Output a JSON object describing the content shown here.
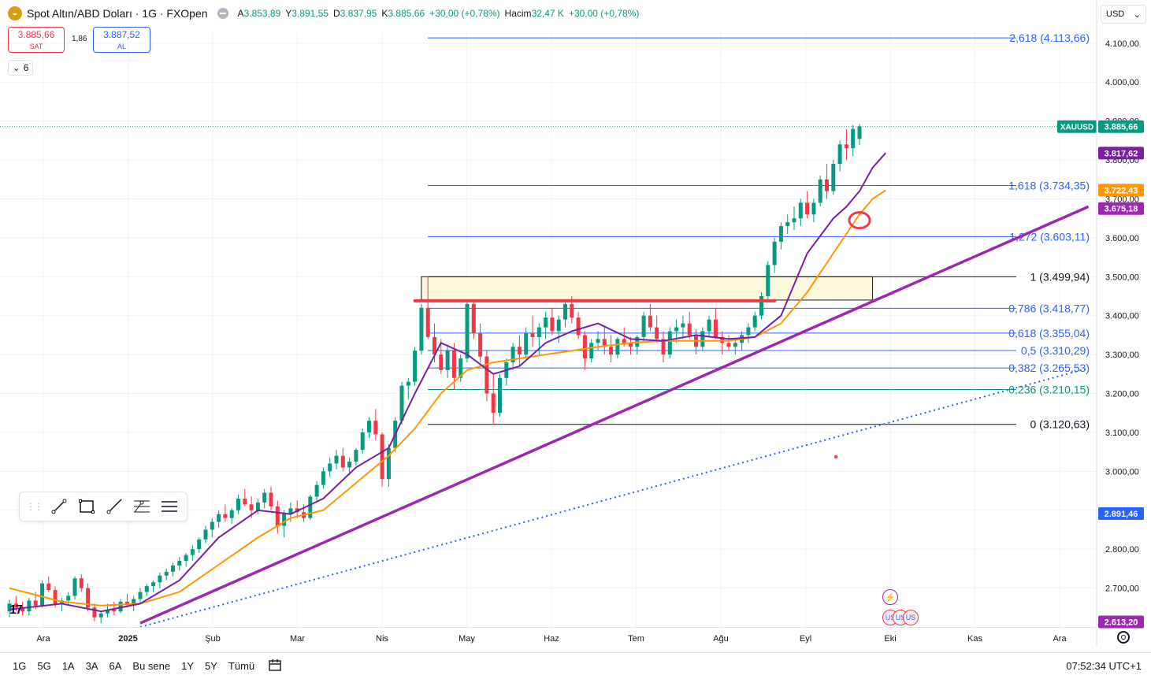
{
  "header": {
    "logo_glyph": "◒",
    "symbol_title": "Spot Altın/ABD Doları · 1G · FXOpen",
    "ohlc": [
      {
        "k": "A",
        "v": "3.853,89"
      },
      {
        "k": "Y",
        "v": "3.891,55"
      },
      {
        "k": "D",
        "v": "3.837,95"
      },
      {
        "k": "K",
        "v": "3.885,66"
      },
      {
        "k": "",
        "v": "+30,00 (+0,78%)"
      },
      {
        "k": "Hacim",
        "v": "32,47 K"
      },
      {
        "k": "",
        "v": "+30,00 (+0,78%)"
      }
    ]
  },
  "trade": {
    "sell_price": "3.885,66",
    "sell_label": "SAT",
    "spread": "1,86",
    "buy_price": "3.887,52",
    "buy_label": "AL"
  },
  "indicator_toggle": {
    "icon": "chevron-down-icon",
    "glyph": "⌄",
    "count": "6"
  },
  "currency_select": {
    "value": "USD",
    "glyph": "⌄"
  },
  "drawing_toolbar": {
    "grip_glyph": "⋮⋮",
    "tools": [
      "trend-line-icon",
      "rectangle-icon",
      "ray-icon",
      "fib-retracement-icon",
      "parallel-channel-icon"
    ]
  },
  "bottom_bar": {
    "ranges": [
      "1G",
      "5G",
      "1A",
      "3A",
      "6A",
      "Bu sene",
      "1Y",
      "5Y",
      "Tümü"
    ],
    "calendar_icon": "calendar-icon",
    "clock": "07:52:34 UTC+1"
  },
  "branding": {
    "tv_logo": "17"
  },
  "events": {
    "flash_glyph": "⚡",
    "flag_glyph": "US"
  },
  "colors": {
    "up": "#089981",
    "down": "#f23645",
    "fib": "#2962ff",
    "ma_fast": "#7b1fa2",
    "ma_slow": "#ff9800",
    "trend": "#9c27b0"
  },
  "chart_data": {
    "type": "candlestick",
    "ylim": [
      2600,
      4130
    ],
    "y_ticks": [
      "2.700,00",
      "2.800,00",
      "2.900,00",
      "3.000,00",
      "3.100,00",
      "3.200,00",
      "3.300,00",
      "3.400,00",
      "3.500,00",
      "3.600,00",
      "3.700,00",
      "3.800,00",
      "3.900,00",
      "4.000,00",
      "4.100,00"
    ],
    "x_labels": [
      "Ara",
      "2025",
      "Şub",
      "Mar",
      "Nis",
      "May",
      "Haz",
      "Tem",
      "Ağu",
      "Eyl",
      "Eki",
      "Kas",
      "Ara"
    ],
    "candles": [
      [
        2640,
        2670,
        2625,
        2660
      ],
      [
        2660,
        2680,
        2640,
        2650
      ],
      [
        2650,
        2665,
        2630,
        2640
      ],
      [
        2640,
        2675,
        2630,
        2668
      ],
      [
        2668,
        2690,
        2645,
        2655
      ],
      [
        2655,
        2720,
        2650,
        2712
      ],
      [
        2712,
        2730,
        2690,
        2695
      ],
      [
        2695,
        2705,
        2650,
        2660
      ],
      [
        2660,
        2675,
        2640,
        2668
      ],
      [
        2668,
        2690,
        2655,
        2680
      ],
      [
        2680,
        2730,
        2670,
        2725
      ],
      [
        2725,
        2735,
        2690,
        2700
      ],
      [
        2700,
        2712,
        2640,
        2650
      ],
      [
        2650,
        2660,
        2615,
        2625
      ],
      [
        2625,
        2640,
        2610,
        2635
      ],
      [
        2635,
        2660,
        2625,
        2645
      ],
      [
        2645,
        2665,
        2630,
        2640
      ],
      [
        2640,
        2672,
        2635,
        2665
      ],
      [
        2665,
        2685,
        2650,
        2660
      ],
      [
        2660,
        2680,
        2640,
        2672
      ],
      [
        2672,
        2700,
        2660,
        2690
      ],
      [
        2690,
        2710,
        2680,
        2705
      ],
      [
        2705,
        2720,
        2690,
        2715
      ],
      [
        2715,
        2740,
        2700,
        2732
      ],
      [
        2732,
        2750,
        2720,
        2742
      ],
      [
        2742,
        2765,
        2730,
        2758
      ],
      [
        2758,
        2780,
        2745,
        2770
      ],
      [
        2770,
        2790,
        2755,
        2785
      ],
      [
        2785,
        2810,
        2770,
        2800
      ],
      [
        2800,
        2830,
        2790,
        2825
      ],
      [
        2825,
        2860,
        2815,
        2850
      ],
      [
        2850,
        2880,
        2830,
        2870
      ],
      [
        2870,
        2900,
        2855,
        2890
      ],
      [
        2890,
        2915,
        2870,
        2880
      ],
      [
        2880,
        2905,
        2865,
        2900
      ],
      [
        2900,
        2940,
        2890,
        2930
      ],
      [
        2930,
        2955,
        2910,
        2915
      ],
      [
        2915,
        2935,
        2880,
        2900
      ],
      [
        2900,
        2930,
        2890,
        2920
      ],
      [
        2920,
        2955,
        2905,
        2945
      ],
      [
        2945,
        2960,
        2900,
        2910
      ],
      [
        2910,
        2925,
        2840,
        2860
      ],
      [
        2860,
        2900,
        2830,
        2890
      ],
      [
        2890,
        2920,
        2870,
        2905
      ],
      [
        2905,
        2925,
        2880,
        2895
      ],
      [
        2895,
        2915,
        2870,
        2880
      ],
      [
        2880,
        2940,
        2875,
        2935
      ],
      [
        2935,
        2975,
        2925,
        2965
      ],
      [
        2965,
        3010,
        2955,
        3000
      ],
      [
        3000,
        3035,
        2985,
        3020
      ],
      [
        3020,
        3055,
        3005,
        3040
      ],
      [
        3040,
        3060,
        3000,
        3010
      ],
      [
        3010,
        3035,
        2990,
        3025
      ],
      [
        3025,
        3060,
        3015,
        3055
      ],
      [
        3055,
        3110,
        3045,
        3100
      ],
      [
        3100,
        3140,
        3085,
        3130
      ],
      [
        3130,
        3160,
        3080,
        3095
      ],
      [
        3095,
        3100,
        2960,
        2980
      ],
      [
        2980,
        3070,
        2960,
        3060
      ],
      [
        3060,
        3140,
        3050,
        3130
      ],
      [
        3130,
        3230,
        3120,
        3220
      ],
      [
        3220,
        3240,
        3185,
        3230
      ],
      [
        3230,
        3320,
        3220,
        3310
      ],
      [
        3310,
        3430,
        3300,
        3420
      ],
      [
        3420,
        3500,
        3340,
        3345
      ],
      [
        3345,
        3380,
        3280,
        3300
      ],
      [
        3300,
        3340,
        3250,
        3260
      ],
      [
        3260,
        3320,
        3240,
        3310
      ],
      [
        3310,
        3330,
        3210,
        3240
      ],
      [
        3240,
        3300,
        3230,
        3290
      ],
      [
        3290,
        3440,
        3280,
        3430
      ],
      [
        3430,
        3440,
        3340,
        3355
      ],
      [
        3355,
        3380,
        3280,
        3295
      ],
      [
        3295,
        3310,
        3180,
        3200
      ],
      [
        3200,
        3250,
        3120,
        3150
      ],
      [
        3150,
        3250,
        3140,
        3240
      ],
      [
        3240,
        3290,
        3220,
        3280
      ],
      [
        3280,
        3330,
        3260,
        3320
      ],
      [
        3320,
        3350,
        3270,
        3300
      ],
      [
        3300,
        3370,
        3290,
        3355
      ],
      [
        3355,
        3400,
        3320,
        3345
      ],
      [
        3345,
        3380,
        3300,
        3370
      ],
      [
        3370,
        3410,
        3340,
        3395
      ],
      [
        3395,
        3420,
        3350,
        3360
      ],
      [
        3360,
        3400,
        3330,
        3390
      ],
      [
        3390,
        3440,
        3370,
        3430
      ],
      [
        3430,
        3450,
        3380,
        3395
      ],
      [
        3395,
        3410,
        3340,
        3350
      ],
      [
        3350,
        3360,
        3260,
        3290
      ],
      [
        3290,
        3340,
        3280,
        3330
      ],
      [
        3330,
        3360,
        3310,
        3340
      ],
      [
        3340,
        3370,
        3300,
        3320
      ],
      [
        3320,
        3350,
        3280,
        3300
      ],
      [
        3300,
        3345,
        3290,
        3340
      ],
      [
        3340,
        3370,
        3320,
        3330
      ],
      [
        3330,
        3345,
        3300,
        3320
      ],
      [
        3320,
        3350,
        3300,
        3345
      ],
      [
        3345,
        3410,
        3335,
        3400
      ],
      [
        3400,
        3430,
        3360,
        3370
      ],
      [
        3370,
        3400,
        3330,
        3340
      ],
      [
        3340,
        3360,
        3280,
        3300
      ],
      [
        3300,
        3370,
        3290,
        3360
      ],
      [
        3360,
        3390,
        3330,
        3370
      ],
      [
        3370,
        3400,
        3340,
        3380
      ],
      [
        3380,
        3410,
        3340,
        3350
      ],
      [
        3350,
        3365,
        3300,
        3320
      ],
      [
        3320,
        3370,
        3310,
        3360
      ],
      [
        3360,
        3400,
        3345,
        3390
      ],
      [
        3390,
        3420,
        3340,
        3345
      ],
      [
        3345,
        3360,
        3300,
        3330
      ],
      [
        3330,
        3350,
        3310,
        3320
      ],
      [
        3320,
        3340,
        3300,
        3330
      ],
      [
        3330,
        3360,
        3310,
        3350
      ],
      [
        3350,
        3380,
        3330,
        3370
      ],
      [
        3370,
        3410,
        3360,
        3400
      ],
      [
        3400,
        3460,
        3390,
        3450
      ],
      [
        3450,
        3540,
        3440,
        3530
      ],
      [
        3530,
        3600,
        3510,
        3590
      ],
      [
        3590,
        3640,
        3570,
        3630
      ],
      [
        3630,
        3660,
        3610,
        3640
      ],
      [
        3640,
        3680,
        3620,
        3650
      ],
      [
        3650,
        3700,
        3630,
        3690
      ],
      [
        3690,
        3720,
        3650,
        3660
      ],
      [
        3660,
        3700,
        3640,
        3690
      ],
      [
        3690,
        3760,
        3680,
        3750
      ],
      [
        3750,
        3790,
        3700,
        3720
      ],
      [
        3720,
        3800,
        3710,
        3790
      ],
      [
        3790,
        3850,
        3770,
        3840
      ],
      [
        3840,
        3880,
        3800,
        3830
      ],
      [
        3830,
        3890,
        3810,
        3880
      ],
      [
        3854,
        3892,
        3838,
        3886
      ]
    ],
    "ma_fast": [
      [
        0,
        2645
      ],
      [
        8,
        2660
      ],
      [
        14,
        2640
      ],
      [
        20,
        2660
      ],
      [
        26,
        2720
      ],
      [
        32,
        2830
      ],
      [
        38,
        2900
      ],
      [
        43,
        2890
      ],
      [
        48,
        2930
      ],
      [
        53,
        3010
      ],
      [
        58,
        3060
      ],
      [
        62,
        3200
      ],
      [
        66,
        3330
      ],
      [
        70,
        3300
      ],
      [
        74,
        3250
      ],
      [
        78,
        3270
      ],
      [
        82,
        3330
      ],
      [
        86,
        3360
      ],
      [
        90,
        3380
      ],
      [
        95,
        3340
      ],
      [
        100,
        3335
      ],
      [
        105,
        3350
      ],
      [
        110,
        3340
      ],
      [
        114,
        3345
      ],
      [
        118,
        3400
      ],
      [
        122,
        3560
      ],
      [
        126,
        3650
      ],
      [
        128,
        3680
      ],
      [
        130,
        3720
      ],
      [
        132,
        3780
      ],
      [
        134,
        3818
      ]
    ],
    "ma_slow": [
      [
        0,
        2700
      ],
      [
        8,
        2665
      ],
      [
        14,
        2655
      ],
      [
        20,
        2660
      ],
      [
        26,
        2690
      ],
      [
        32,
        2760
      ],
      [
        38,
        2830
      ],
      [
        43,
        2880
      ],
      [
        48,
        2900
      ],
      [
        53,
        2970
      ],
      [
        58,
        3040
      ],
      [
        62,
        3110
      ],
      [
        66,
        3200
      ],
      [
        70,
        3260
      ],
      [
        74,
        3280
      ],
      [
        78,
        3290
      ],
      [
        82,
        3300
      ],
      [
        86,
        3310
      ],
      [
        90,
        3320
      ],
      [
        95,
        3330
      ],
      [
        100,
        3335
      ],
      [
        105,
        3335
      ],
      [
        110,
        3335
      ],
      [
        114,
        3345
      ],
      [
        118,
        3380
      ],
      [
        122,
        3460
      ],
      [
        126,
        3560
      ],
      [
        128,
        3610
      ],
      [
        130,
        3660
      ],
      [
        132,
        3700
      ],
      [
        134,
        3722
      ]
    ],
    "fib_levels": [
      {
        "label": "2,618 (4.113,66)",
        "value": 4113.66,
        "color": "#2962ff"
      },
      {
        "label": "1,618 (3.734,35)",
        "value": 3734.35,
        "color": "#2962ff"
      },
      {
        "label": "1,272 (3.603,11)",
        "value": 3603.11,
        "color": "#2962ff"
      },
      {
        "label": "1 (3.499,94)",
        "value": 3499.94,
        "color": "#131722"
      },
      {
        "label": "0,786 (3.418,77)",
        "value": 3418.77,
        "color": "#2962ff"
      },
      {
        "label": "0,618 (3.355,04)",
        "value": 3355.04,
        "color": "#2962ff"
      },
      {
        "label": "0,5 (3.310,29)",
        "value": 3310.29,
        "color": "#2962ff"
      },
      {
        "label": "0,382 (3.265,53)",
        "value": 3265.53,
        "color": "#2962ff"
      },
      {
        "label": "0,236 (3.210,15)",
        "value": 3210.15,
        "color": "#089981"
      },
      {
        "label": "0 (3.120,63)",
        "value": 3120.63,
        "color": "#131722"
      }
    ],
    "price_tags": [
      {
        "label": "XAUUSD",
        "value": "3.885,66",
        "price": 3885.66,
        "bg": "#089981"
      },
      {
        "label": "",
        "value": "3.817,62",
        "price": 3817.62,
        "bg": "#7b1fa2"
      },
      {
        "label": "",
        "value": "3.722,43",
        "price": 3722.43,
        "bg": "#ff9800"
      },
      {
        "label": "",
        "value": "3.675,18",
        "price": 3675.18,
        "bg": "#9c27b0"
      },
      {
        "label": "",
        "value": "2.891,46",
        "price": 2891.46,
        "bg": "#2962ff"
      },
      {
        "label": "",
        "value": "2.613,20",
        "price": 2613.2,
        "bg": "#9c27b0"
      }
    ],
    "resistance_zone": {
      "x_start": 63,
      "x_end": 132,
      "price_low": 3440,
      "price_high": 3500
    },
    "resistance_line": {
      "x_start": 62,
      "x_end": 117,
      "price": 3438
    },
    "trend_line": {
      "from": [
        20,
        2610
      ],
      "to": [
        165,
        3680
      ]
    },
    "dotted_trend": {
      "from": [
        20,
        2600
      ],
      "to": [
        165,
        3265
      ]
    },
    "circle_mark": {
      "x": 130,
      "price": 3645
    }
  }
}
